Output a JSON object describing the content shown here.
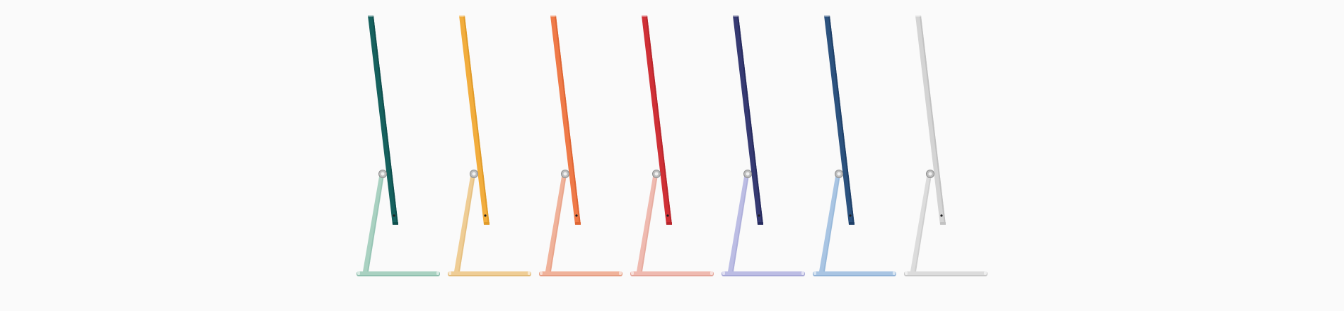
{
  "scene": {
    "background": "#fafafa",
    "description_free": true
  },
  "imacs": [
    {
      "color_name": "green",
      "display": "#16615e",
      "display_dark": "#0f4f4d",
      "stand": "#a9d1c1",
      "stand_shadow": "#8fbfae"
    },
    {
      "color_name": "yellow",
      "display": "#f2ad3d",
      "display_dark": "#e09b2a",
      "stand": "#efcd95",
      "stand_shadow": "#e2bb79"
    },
    {
      "color_name": "orange",
      "display": "#ef7a48",
      "display_dark": "#de6634",
      "stand": "#f0b29a",
      "stand_shadow": "#e59d82"
    },
    {
      "color_name": "red",
      "display": "#cf3036",
      "display_dark": "#b8262c",
      "stand": "#efbab0",
      "stand_shadow": "#e3a599"
    },
    {
      "color_name": "purple",
      "display": "#363a72",
      "display_dark": "#272b5e",
      "stand": "#bcbde4",
      "stand_shadow": "#a7a8d6"
    },
    {
      "color_name": "blue",
      "display": "#2c527e",
      "display_dark": "#1f4068",
      "stand": "#a9c5e3",
      "stand_shadow": "#92b3d6"
    },
    {
      "color_name": "silver",
      "display": "#d4d4d4",
      "display_dark": "#c2c2c2",
      "stand": "#dcdcdc",
      "stand_shadow": "#c8c8c8"
    }
  ]
}
